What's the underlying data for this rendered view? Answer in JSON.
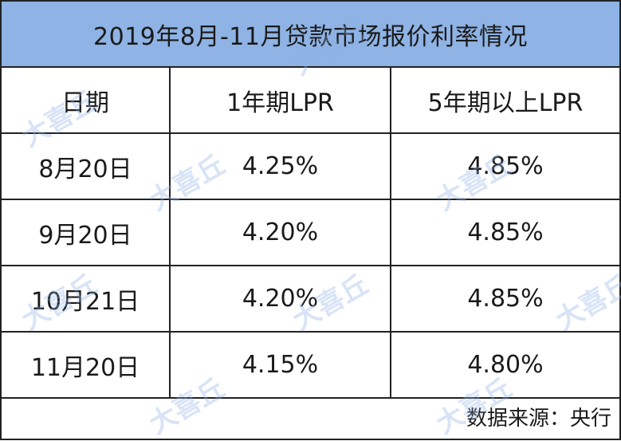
{
  "title": "2019年8月-11月贷款市场报价利率情况",
  "headers": [
    "日期",
    "1年期LPR",
    "5年期以上LPR"
  ],
  "rows": [
    [
      "8月20日",
      "4.25%",
      "4.85%"
    ],
    [
      "9月20日",
      "4.20%",
      "4.85%"
    ],
    [
      "10月21日",
      "4.20%",
      "4.85%"
    ],
    [
      "11月20日",
      "4.15%",
      "4.80%"
    ]
  ],
  "source": "数据来源：央行",
  "watermark": "大喜丘",
  "colors": {
    "title_bg": "#8eb3e4",
    "border": "#222222"
  }
}
